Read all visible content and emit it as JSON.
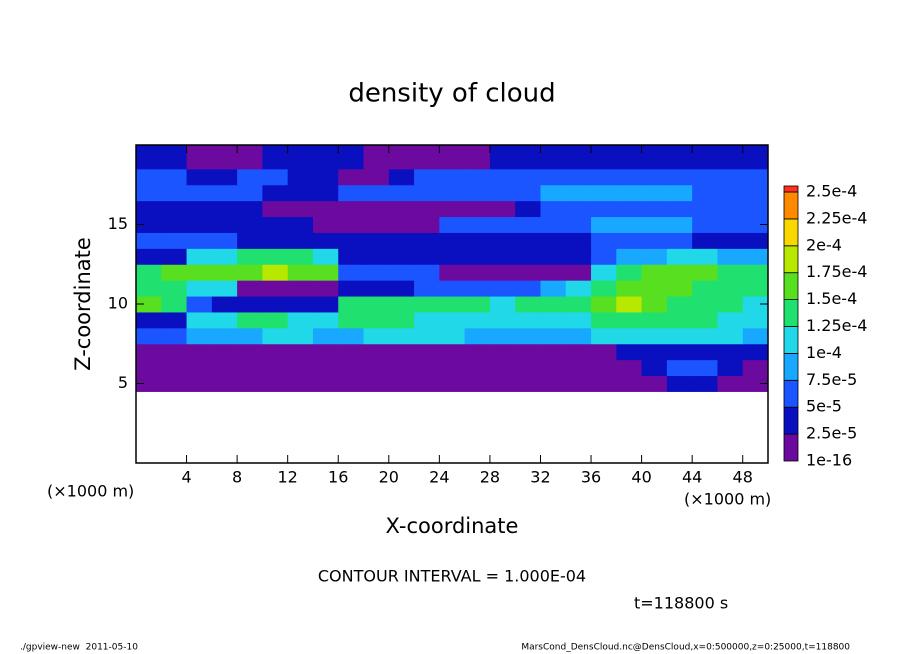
{
  "chart_data": {
    "type": "heatmap",
    "title": "density of cloud",
    "xlabel": "X-coordinate",
    "ylabel": "Z-coordinate",
    "xunit": "(×1000 m)",
    "yunit": "(×1000 m)",
    "xlim": [
      0,
      50
    ],
    "ylim": [
      0,
      20
    ],
    "xticks": [
      4,
      8,
      12,
      16,
      20,
      24,
      28,
      32,
      36,
      40,
      44,
      48
    ],
    "yticks": [
      5,
      10,
      15
    ],
    "x_edges": [
      0,
      2,
      4,
      6,
      8,
      10,
      12,
      14,
      16,
      18,
      20,
      22,
      24,
      26,
      28,
      30,
      32,
      34,
      36,
      38,
      40,
      42,
      44,
      46,
      48,
      50
    ],
    "z_edges": [
      4.5,
      5.5,
      6.5,
      7.5,
      8.5,
      9.5,
      10.5,
      11.5,
      12.5,
      13.5,
      14.5,
      15.5,
      16.5,
      17.5,
      18.5,
      20
    ],
    "values": [
      [
        1e-05,
        1e-05,
        1e-05,
        1e-05,
        1e-05,
        1e-05,
        1e-05,
        1e-05,
        1e-05,
        1e-05,
        1e-05,
        1e-05,
        1e-05,
        1e-05,
        1e-05,
        1e-05,
        1e-05,
        1e-05,
        1e-05,
        1e-05,
        2e-05,
        3e-05,
        3e-05,
        2e-05,
        1e-05
      ],
      [
        1e-05,
        1e-05,
        1e-05,
        1e-05,
        1e-05,
        1e-05,
        1e-05,
        1e-05,
        1e-05,
        1e-05,
        1e-05,
        1e-05,
        1e-05,
        1e-05,
        1e-05,
        1e-05,
        1e-05,
        1e-05,
        1e-05,
        1e-05,
        3e-05,
        5e-05,
        5e-05,
        3e-05,
        2e-05
      ],
      [
        2e-05,
        2e-05,
        1e-05,
        1e-05,
        1e-05,
        1e-05,
        1e-05,
        1e-05,
        1e-05,
        1e-05,
        1e-05,
        1e-05,
        1e-05,
        1e-05,
        1e-05,
        1e-05,
        1e-05,
        1e-05,
        2e-05,
        3e-05,
        4e-05,
        4e-05,
        4e-05,
        3e-05,
        3e-05
      ],
      [
        6e-05,
        7e-05,
        8e-05,
        9e-05,
        9e-05,
        0.0001,
        0.0001,
        9e-05,
        9e-05,
        0.0001,
        0.0001,
        0.0001,
        0.0001,
        9e-05,
        8e-05,
        8e-05,
        8e-05,
        9e-05,
        0.0001,
        0.0001,
        0.00011,
        0.00011,
        0.0001,
        0.0001,
        9e-05
      ],
      [
        3e-05,
        4e-05,
        0.00011,
        0.00012,
        0.00013,
        0.00013,
        0.00012,
        0.00012,
        0.00013,
        0.00014,
        0.00013,
        0.00012,
        0.00012,
        0.00011,
        0.0001,
        0.0001,
        0.00012,
        0.00012,
        0.00013,
        0.00014,
        0.00014,
        0.00013,
        0.00013,
        0.00012,
        0.00011
      ],
      [
        0.00015,
        0.00014,
        5e-05,
        4e-05,
        4e-05,
        4e-05,
        4e-05,
        4e-05,
        0.00013,
        0.00014,
        0.00013,
        0.00013,
        0.00013,
        0.00013,
        0.00012,
        0.00013,
        0.00014,
        0.00014,
        0.00015,
        0.00019,
        0.00015,
        0.00014,
        0.00014,
        0.00013,
        0.00012
      ],
      [
        0.00013,
        0.00013,
        0.00012,
        0.00012,
        2e-05,
        1e-05,
        1e-05,
        1e-05,
        4e-05,
        4e-05,
        4e-05,
        5e-05,
        5e-05,
        7e-05,
        7e-05,
        7e-05,
        8e-05,
        0.0001,
        0.00014,
        0.00016,
        0.00015,
        0.00015,
        0.00014,
        0.00014,
        0.00013
      ],
      [
        0.00014,
        0.00016,
        0.00016,
        0.00017,
        0.00016,
        0.00019,
        0.00017,
        0.00016,
        7e-05,
        7e-05,
        7e-05,
        7e-05,
        1e-05,
        1e-05,
        1e-05,
        1e-05,
        1e-05,
        1e-05,
        0.0001,
        0.00014,
        0.00015,
        0.00016,
        0.00017,
        0.00014,
        0.00013
      ],
      [
        4e-05,
        4e-05,
        0.00011,
        0.00012,
        0.00013,
        0.00014,
        0.00013,
        0.00011,
        3e-05,
        3e-05,
        3e-05,
        3e-05,
        3e-05,
        3e-05,
        3e-05,
        3e-05,
        3e-05,
        3e-05,
        7e-05,
        9e-05,
        9e-05,
        0.0001,
        0.0001,
        9e-05,
        8e-05
      ],
      [
        7e-05,
        7e-05,
        6e-05,
        5e-05,
        4e-05,
        4e-05,
        4e-05,
        3e-05,
        3e-05,
        3e-05,
        3e-05,
        3e-05,
        3e-05,
        3e-05,
        3e-05,
        3e-05,
        3e-05,
        3e-05,
        5e-05,
        5e-05,
        5e-05,
        5e-05,
        4e-05,
        4e-05,
        4e-05
      ],
      [
        4e-05,
        4e-05,
        4e-05,
        4e-05,
        4e-05,
        4e-05,
        4e-05,
        1e-05,
        1e-05,
        1e-05,
        1e-05,
        1e-05,
        5e-05,
        5e-05,
        5e-05,
        5e-05,
        5e-05,
        5e-05,
        8e-05,
        8e-05,
        8e-05,
        8e-05,
        7e-05,
        7e-05,
        6e-05
      ],
      [
        3e-05,
        3e-05,
        3e-05,
        3e-05,
        3e-05,
        1e-05,
        1e-05,
        1e-05,
        1e-05,
        1e-05,
        1e-05,
        1e-05,
        1e-05,
        1e-05,
        1e-05,
        3e-05,
        5e-05,
        6e-05,
        7e-05,
        7e-05,
        7e-05,
        7e-05,
        6e-05,
        6e-05,
        5e-05
      ],
      [
        7e-05,
        7e-05,
        7e-05,
        7e-05,
        7e-05,
        3e-05,
        3e-05,
        3e-05,
        6e-05,
        6e-05,
        6e-05,
        6e-05,
        6e-05,
        6e-05,
        6e-05,
        7e-05,
        8e-05,
        8e-05,
        8e-05,
        8e-05,
        8e-05,
        8e-05,
        7e-05,
        7e-05,
        6e-05
      ],
      [
        6e-05,
        6e-05,
        3e-05,
        3e-05,
        6e-05,
        6e-05,
        3e-05,
        3e-05,
        1e-05,
        1e-05,
        3e-05,
        6e-05,
        6e-05,
        6e-05,
        6e-05,
        6e-05,
        6e-05,
        7e-05,
        7e-05,
        6e-05,
        6e-05,
        6e-05,
        6e-05,
        5e-05,
        5e-05
      ],
      [
        3e-05,
        3e-05,
        1e-05,
        1e-05,
        1e-05,
        3e-05,
        3e-05,
        3e-05,
        3e-05,
        1e-05,
        1e-05,
        1e-05,
        1e-05,
        1e-05,
        3e-05,
        3e-05,
        3e-05,
        3e-05,
        3e-05,
        3e-05,
        3e-05,
        3e-05,
        3e-05,
        3e-05,
        3e-05
      ]
    ],
    "colorbar": {
      "ticks": [
        {
          "value": 1e-16,
          "label": "1e-16"
        },
        {
          "value": 2.5e-05,
          "label": "2.5e-5"
        },
        {
          "value": 5e-05,
          "label": "5e-5"
        },
        {
          "value": 7.5e-05,
          "label": "7.5e-5"
        },
        {
          "value": 0.0001,
          "label": "1e-4"
        },
        {
          "value": 0.000125,
          "label": "1.25e-4"
        },
        {
          "value": 0.00015,
          "label": "1.5e-4"
        },
        {
          "value": 0.000175,
          "label": "1.75e-4"
        },
        {
          "value": 0.0002,
          "label": "2e-4"
        },
        {
          "value": 0.000225,
          "label": "2.25e-4"
        },
        {
          "value": 0.00025,
          "label": "2.5e-4"
        }
      ],
      "colors": [
        "#6c0aa0",
        "#0a10c0",
        "#1a55ff",
        "#18a8ff",
        "#20d8e8",
        "#20e070",
        "#58e020",
        "#b8e800",
        "#f8d800",
        "#ff8a00",
        "#ff3020",
        "#ff9090"
      ]
    },
    "contour_note": "CONTOUR INTERVAL = 1.000E-04",
    "time_label": "t=118800 s",
    "footer_left": "./gpview-new  2011-05-10",
    "footer_right": "MarsCond_DensCloud.nc@DensCloud,x=0:500000,z=0:25000,t=118800"
  }
}
